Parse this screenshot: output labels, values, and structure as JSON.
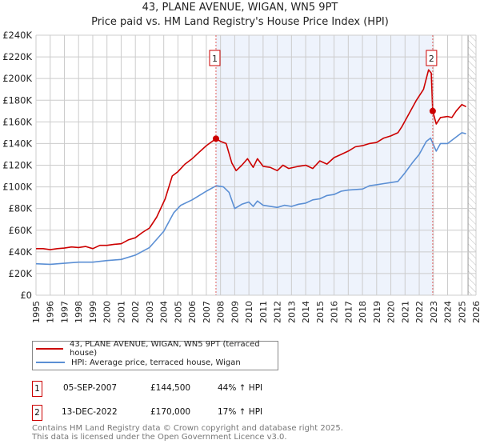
{
  "title": "43, PLANE AVENUE, WIGAN, WN5 9PT",
  "subtitle": "Price paid vs. HM Land Registry's House Price Index (HPI)",
  "colors": {
    "property": "#cc0000",
    "hpi": "#5b8fd4",
    "shade": "#eef3fc",
    "grid": "#cccccc"
  },
  "chart_data": {
    "type": "line",
    "title": "43, PLANE AVENUE, WIGAN, WN5 9PT",
    "xlabel": "",
    "ylabel": "",
    "xlim": [
      1995,
      2026
    ],
    "ylim": [
      0,
      240000
    ],
    "x_ticks": [
      1995,
      1996,
      1997,
      1998,
      1999,
      2000,
      2001,
      2002,
      2003,
      2004,
      2005,
      2006,
      2007,
      2008,
      2009,
      2010,
      2011,
      2012,
      2013,
      2014,
      2015,
      2016,
      2017,
      2018,
      2019,
      2020,
      2021,
      2022,
      2023,
      2024,
      2025,
      2026
    ],
    "y_ticks": [
      0,
      20000,
      40000,
      60000,
      80000,
      100000,
      120000,
      140000,
      160000,
      180000,
      200000,
      220000,
      240000
    ],
    "y_tick_labels": [
      "£0",
      "£20K",
      "£40K",
      "£60K",
      "£80K",
      "£100K",
      "£120K",
      "£140K",
      "£160K",
      "£180K",
      "£200K",
      "£220K",
      "£240K"
    ],
    "grid": true,
    "forecast_hatch_from": 2025.44,
    "series": [
      {
        "name": "43, PLANE AVENUE, WIGAN, WN5 9PT (terraced house)",
        "points": [
          [
            1995,
            43000
          ],
          [
            1995.5,
            43000
          ],
          [
            1996,
            42000
          ],
          [
            1996.5,
            43000
          ],
          [
            1997,
            43500
          ],
          [
            1997.5,
            44500
          ],
          [
            1998,
            44000
          ],
          [
            1998.5,
            45000
          ],
          [
            1999,
            43000
          ],
          [
            1999.5,
            46000
          ],
          [
            2000,
            46000
          ],
          [
            2000.5,
            47000
          ],
          [
            2001,
            47500
          ],
          [
            2001.5,
            51000
          ],
          [
            2002,
            53000
          ],
          [
            2002.5,
            58000
          ],
          [
            2003,
            62000
          ],
          [
            2003.5,
            72000
          ],
          [
            2004.1,
            89000
          ],
          [
            2004.6,
            110000
          ],
          [
            2005,
            114000
          ],
          [
            2005.5,
            121000
          ],
          [
            2006,
            126000
          ],
          [
            2006.5,
            132000
          ],
          [
            2007,
            138000
          ],
          [
            2007.68,
            144500
          ],
          [
            2008,
            142000
          ],
          [
            2008.4,
            140000
          ],
          [
            2008.8,
            122000
          ],
          [
            2009.1,
            115000
          ],
          [
            2009.5,
            120000
          ],
          [
            2009.9,
            126000
          ],
          [
            2010.3,
            118000
          ],
          [
            2010.6,
            126000
          ],
          [
            2011,
            119000
          ],
          [
            2011.5,
            118000
          ],
          [
            2012,
            115000
          ],
          [
            2012.4,
            120000
          ],
          [
            2012.8,
            117000
          ],
          [
            2013.5,
            119000
          ],
          [
            2014,
            120000
          ],
          [
            2014.5,
            117000
          ],
          [
            2015,
            124000
          ],
          [
            2015.5,
            121000
          ],
          [
            2016,
            127000
          ],
          [
            2016.5,
            130000
          ],
          [
            2017,
            133000
          ],
          [
            2017.5,
            137000
          ],
          [
            2018,
            138000
          ],
          [
            2018.5,
            140000
          ],
          [
            2019,
            141000
          ],
          [
            2019.5,
            145000
          ],
          [
            2020,
            147000
          ],
          [
            2020.5,
            150000
          ],
          [
            2020.8,
            156000
          ],
          [
            2021.3,
            168000
          ],
          [
            2021.8,
            180000
          ],
          [
            2022.3,
            190000
          ],
          [
            2022.66,
            208000
          ],
          [
            2022.85,
            205000
          ],
          [
            2022.95,
            170000
          ],
          [
            2023.2,
            158000
          ],
          [
            2023.5,
            164000
          ],
          [
            2024,
            165000
          ],
          [
            2024.3,
            164000
          ],
          [
            2024.6,
            170000
          ],
          [
            2025,
            176000
          ],
          [
            2025.3,
            174000
          ]
        ]
      },
      {
        "name": "HPI: Average price, terraced house, Wigan",
        "points": [
          [
            1995,
            29000
          ],
          [
            1996,
            28500
          ],
          [
            1997,
            29500
          ],
          [
            1998,
            30500
          ],
          [
            1999,
            30500
          ],
          [
            2000,
            32000
          ],
          [
            2001,
            33000
          ],
          [
            2002,
            37000
          ],
          [
            2003,
            44000
          ],
          [
            2004,
            59000
          ],
          [
            2004.7,
            76000
          ],
          [
            2005.2,
            83000
          ],
          [
            2006,
            88000
          ],
          [
            2006.5,
            92000
          ],
          [
            2007,
            96000
          ],
          [
            2007.7,
            101000
          ],
          [
            2008.2,
            100000
          ],
          [
            2008.6,
            95000
          ],
          [
            2009,
            80000
          ],
          [
            2009.5,
            84000
          ],
          [
            2010,
            86000
          ],
          [
            2010.3,
            82000
          ],
          [
            2010.6,
            87000
          ],
          [
            2011,
            83000
          ],
          [
            2012,
            81000
          ],
          [
            2012.5,
            83000
          ],
          [
            2013,
            82000
          ],
          [
            2013.5,
            84000
          ],
          [
            2014,
            85000
          ],
          [
            2014.5,
            88000
          ],
          [
            2015,
            89000
          ],
          [
            2015.5,
            92000
          ],
          [
            2016,
            93000
          ],
          [
            2016.5,
            96000
          ],
          [
            2017,
            97000
          ],
          [
            2018,
            98000
          ],
          [
            2018.5,
            101000
          ],
          [
            2019,
            102000
          ],
          [
            2019.5,
            103000
          ],
          [
            2020,
            104000
          ],
          [
            2020.5,
            105000
          ],
          [
            2021,
            113000
          ],
          [
            2021.5,
            122000
          ],
          [
            2022,
            130000
          ],
          [
            2022.5,
            142000
          ],
          [
            2022.8,
            145000
          ],
          [
            2023.2,
            133000
          ],
          [
            2023.5,
            140000
          ],
          [
            2024,
            140000
          ],
          [
            2024.5,
            145000
          ],
          [
            2025,
            150000
          ],
          [
            2025.3,
            149000
          ]
        ]
      }
    ],
    "annotations": [
      {
        "label": "1",
        "x": 2007.68,
        "y": 144500
      },
      {
        "label": "2",
        "x": 2022.95,
        "y": 170000
      }
    ]
  },
  "legend": {
    "property_label": "43, PLANE AVENUE, WIGAN, WN5 9PT (terraced house)",
    "hpi_label": "HPI: Average price, terraced house, Wigan"
  },
  "sales": [
    {
      "num": "1",
      "date": "05-SEP-2007",
      "price": "£144,500",
      "hpi": "44% ↑ HPI"
    },
    {
      "num": "2",
      "date": "13-DEC-2022",
      "price": "£170,000",
      "hpi": "17% ↑ HPI"
    }
  ],
  "footer": {
    "line1": "Contains HM Land Registry data © Crown copyright and database right 2025.",
    "line2": "This data is licensed under the Open Government Licence v3.0."
  }
}
